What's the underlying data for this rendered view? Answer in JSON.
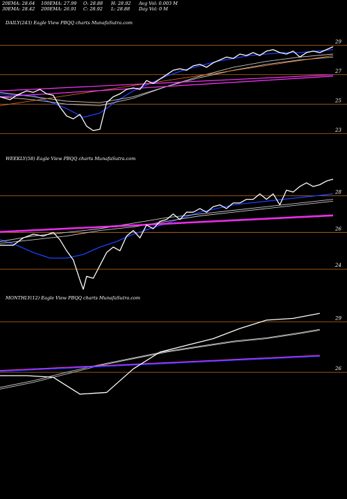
{
  "header": {
    "row1": [
      "20EMA: 28.64",
      "100EMA: 27.99",
      "O: 28.88",
      "H: 28.92",
      "Avg Vol: 0.003  M"
    ],
    "row2": [
      "30EMA: 28.42",
      "200EMA: 26.91",
      "C: 28.92",
      "L: 28.88",
      "Day Vol: 0  M"
    ]
  },
  "colors": {
    "background": "#000000",
    "price": "#ffffff",
    "ema_short": "#1e40ff",
    "ema_long": "#c8c8c8",
    "trend": "#ff33ff",
    "level": "#c8701e",
    "thin_orange": "#ff7a1a"
  },
  "chart_data": [
    {
      "type": "line",
      "title": "DAILY(243) Eagle  View  PBQQ charts MunafaSutra.com",
      "yticks": [
        23,
        25,
        27,
        29
      ],
      "ylim": [
        22.0,
        30.0
      ],
      "xlim": [
        0,
        100
      ],
      "levels": [
        29.0,
        27.0,
        25.0,
        23.0
      ],
      "series": [
        {
          "role": "price",
          "x": [
            0,
            3,
            5,
            8,
            10,
            12,
            14,
            16,
            18,
            20,
            22,
            24,
            26,
            28,
            30,
            32,
            34,
            36,
            38,
            40,
            42,
            44,
            46,
            48,
            50,
            52,
            54,
            56,
            58,
            60,
            62,
            64,
            66,
            68,
            70,
            72,
            74,
            76,
            78,
            80,
            82,
            84,
            86,
            88,
            90,
            92,
            94,
            96,
            98,
            100
          ],
          "y": [
            25.5,
            25.3,
            25.6,
            25.9,
            25.8,
            26.0,
            25.7,
            25.6,
            24.8,
            24.2,
            24.0,
            24.3,
            23.5,
            23.2,
            23.3,
            25.1,
            25.5,
            25.7,
            26.0,
            26.1,
            26.0,
            26.6,
            26.4,
            26.7,
            27.0,
            27.3,
            27.4,
            27.3,
            27.6,
            27.7,
            27.5,
            27.8,
            28.0,
            28.2,
            28.1,
            28.4,
            28.3,
            28.5,
            28.3,
            28.6,
            28.7,
            28.5,
            28.4,
            28.6,
            28.2,
            28.5,
            28.6,
            28.5,
            28.7,
            28.9
          ]
        },
        {
          "role": "ema_short",
          "x": [
            0,
            10,
            20,
            25,
            30,
            35,
            40,
            45,
            50,
            55,
            60,
            65,
            70,
            75,
            80,
            85,
            90,
            95,
            100
          ],
          "y": [
            25.7,
            25.6,
            24.7,
            24.1,
            24.4,
            25.2,
            25.9,
            26.4,
            26.9,
            27.3,
            27.6,
            27.9,
            28.1,
            28.3,
            28.4,
            28.5,
            28.5,
            28.6,
            28.7
          ]
        },
        {
          "role": "ema_long",
          "x": [
            0,
            10,
            20,
            30,
            40,
            50,
            60,
            70,
            80,
            90,
            100
          ],
          "y": [
            25.5,
            25.3,
            25.0,
            24.9,
            25.4,
            26.2,
            26.9,
            27.5,
            27.9,
            28.2,
            28.4
          ]
        },
        {
          "role": "ema_long",
          "x": [
            0,
            10,
            20,
            30,
            40,
            50,
            60,
            70,
            80,
            90,
            100
          ],
          "y": [
            25.8,
            25.5,
            25.2,
            25.1,
            25.5,
            26.2,
            26.8,
            27.3,
            27.7,
            28.0,
            28.2
          ]
        },
        {
          "role": "thin_orange",
          "x": [
            0,
            100
          ],
          "y": [
            24.9,
            28.3
          ]
        },
        {
          "role": "trend",
          "x": [
            0,
            100
          ],
          "y": [
            25.5,
            26.9
          ]
        },
        {
          "role": "trend",
          "x": [
            0,
            100
          ],
          "y": [
            25.9,
            27.0
          ]
        }
      ]
    },
    {
      "type": "line",
      "title": "WEEKLY(58) Eagle  View  PBQQ charts MunafaSutra.com",
      "yticks": [
        24,
        26,
        28
      ],
      "ylim": [
        22.8,
        29.6
      ],
      "xlim": [
        0,
        100
      ],
      "levels": [
        28.0,
        26.0,
        24.0
      ],
      "series": [
        {
          "role": "price",
          "x": [
            0,
            4,
            7,
            10,
            13,
            16,
            18,
            20,
            22,
            24,
            25,
            26,
            28,
            30,
            32,
            34,
            36,
            38,
            40,
            42,
            44,
            46,
            48,
            50,
            52,
            54,
            56,
            58,
            60,
            62,
            64,
            66,
            68,
            70,
            72,
            74,
            76,
            78,
            80,
            82,
            84,
            86,
            88,
            90,
            92,
            94,
            96,
            98,
            100
          ],
          "y": [
            25.3,
            25.3,
            25.7,
            25.9,
            25.8,
            26.0,
            25.6,
            25.0,
            24.5,
            23.4,
            22.9,
            23.6,
            23.5,
            24.2,
            24.9,
            25.2,
            25.0,
            25.8,
            26.1,
            25.7,
            26.4,
            26.2,
            26.6,
            26.7,
            27.0,
            26.7,
            27.1,
            27.1,
            27.3,
            27.1,
            27.4,
            27.5,
            27.3,
            27.6,
            27.6,
            27.8,
            27.8,
            28.1,
            27.8,
            28.1,
            27.5,
            28.3,
            28.2,
            28.5,
            28.7,
            28.5,
            28.6,
            28.8,
            28.9
          ]
        },
        {
          "role": "ema_short",
          "x": [
            0,
            5,
            10,
            15,
            20,
            25,
            30,
            35,
            40,
            45,
            50,
            55,
            60,
            65,
            70,
            75,
            80,
            85,
            90,
            95,
            100
          ],
          "y": [
            25.6,
            25.3,
            24.9,
            24.6,
            24.6,
            24.8,
            25.2,
            25.5,
            25.9,
            26.2,
            26.5,
            26.8,
            27.1,
            27.3,
            27.5,
            27.6,
            27.7,
            27.8,
            27.9,
            28.0,
            28.1
          ]
        },
        {
          "role": "ema_long",
          "x": [
            0,
            10,
            20,
            30,
            40,
            50,
            60,
            70,
            80,
            90,
            100
          ],
          "y": [
            25.5,
            25.8,
            26.0,
            26.2,
            26.5,
            26.8,
            27.0,
            27.2,
            27.4,
            27.6,
            27.8
          ]
        },
        {
          "role": "ema_long",
          "x": [
            0,
            10,
            20,
            30,
            40,
            50,
            60,
            70,
            80,
            90,
            100
          ],
          "y": [
            25.4,
            25.6,
            25.8,
            26.1,
            26.3,
            26.6,
            26.9,
            27.1,
            27.3,
            27.5,
            27.7
          ]
        },
        {
          "role": "trend",
          "x": [
            0,
            100
          ],
          "y": [
            26.0,
            26.9
          ]
        },
        {
          "role": "trend",
          "x": [
            0,
            100
          ],
          "y": [
            26.05,
            26.95
          ]
        }
      ]
    },
    {
      "type": "line",
      "title": "MONTHLY(12) Eagle  View  PBQQ charts MunafaSutra.com",
      "yticks": [
        26,
        29
      ],
      "ylim": [
        23.0,
        30.0
      ],
      "xlim": [
        0,
        100
      ],
      "levels": [
        29.0,
        26.0
      ],
      "series": [
        {
          "role": "price",
          "x": [
            0,
            8,
            16,
            24,
            32,
            40,
            48,
            56,
            64,
            72,
            80,
            88,
            96
          ],
          "y": [
            25.8,
            25.8,
            25.7,
            24.7,
            24.8,
            26.2,
            27.2,
            27.6,
            28.0,
            28.6,
            29.1,
            29.2,
            29.5
          ]
        },
        {
          "role": "ema_long",
          "x": [
            0,
            10,
            20,
            30,
            40,
            50,
            60,
            70,
            80,
            90,
            96
          ],
          "y": [
            25.0,
            25.4,
            25.9,
            26.4,
            26.8,
            27.2,
            27.5,
            27.8,
            28.0,
            28.3,
            28.5
          ]
        },
        {
          "role": "ema_long",
          "x": [
            0,
            10,
            20,
            30,
            40,
            50,
            60,
            70,
            80,
            90,
            96
          ],
          "y": [
            25.1,
            25.5,
            26.0,
            26.45,
            26.85,
            27.25,
            27.55,
            27.85,
            28.05,
            28.35,
            28.55
          ]
        },
        {
          "role": "trend",
          "x": [
            0,
            96
          ],
          "y": [
            26.1,
            27.0
          ]
        },
        {
          "role": "ema_short",
          "x": [
            0,
            96
          ],
          "y": [
            26.05,
            26.95
          ]
        }
      ]
    }
  ]
}
